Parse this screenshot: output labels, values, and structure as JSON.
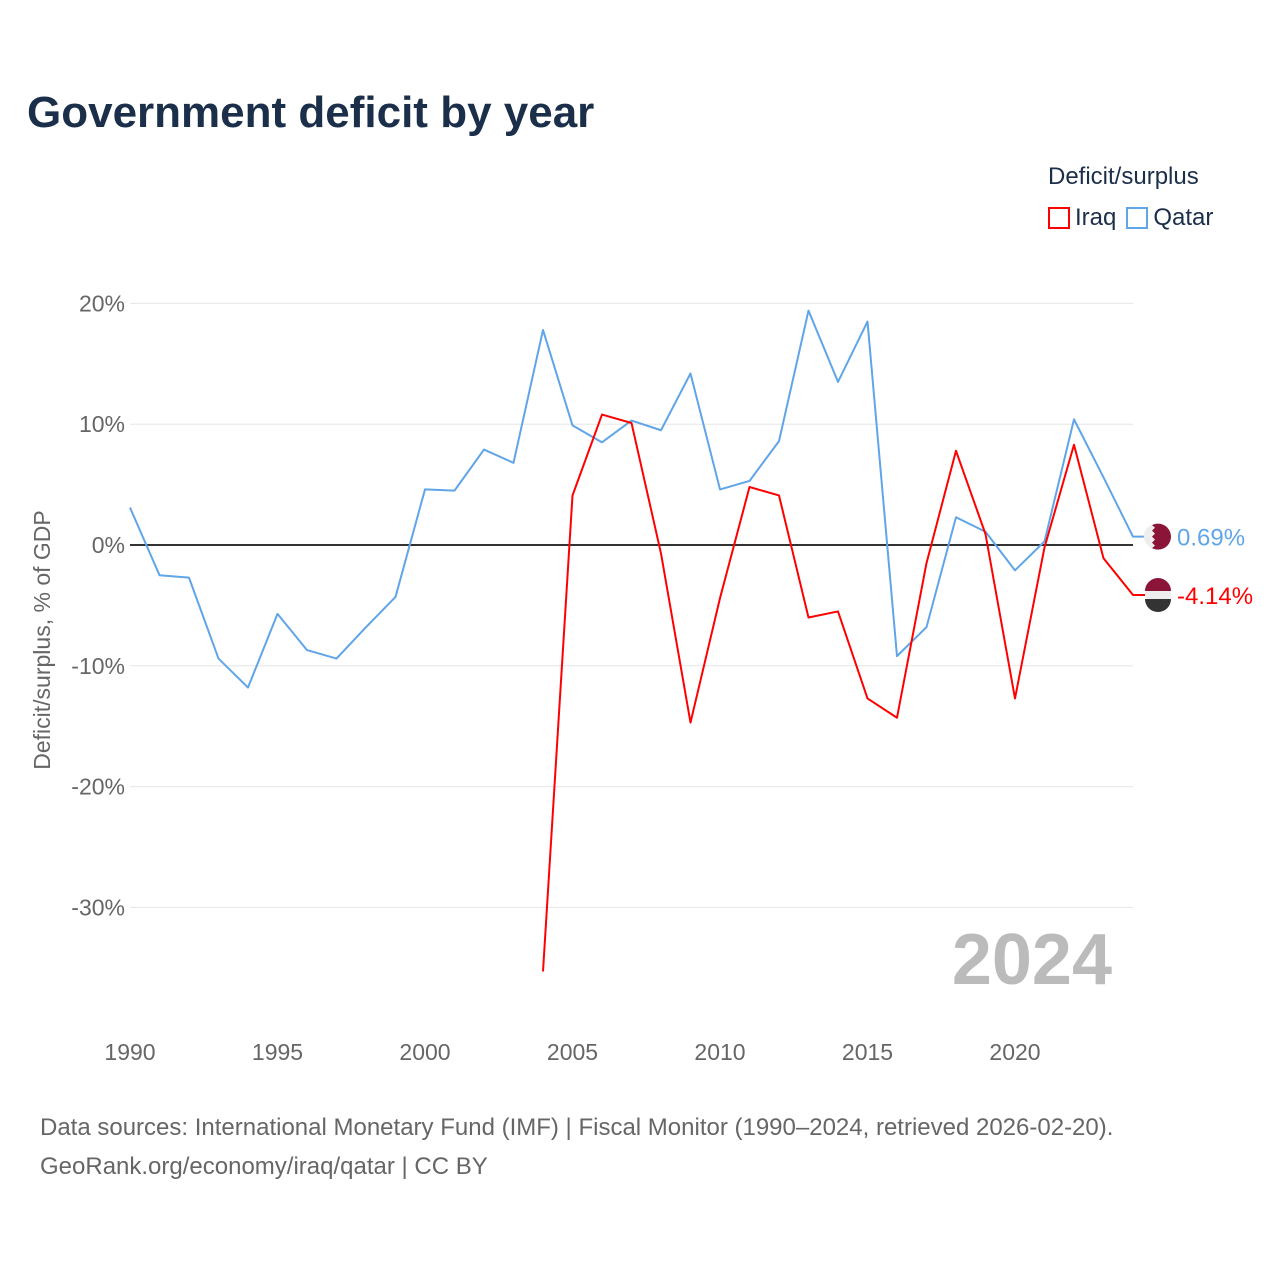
{
  "title": "Government deficit by year",
  "legend": {
    "title": "Deficit/surplus",
    "items": [
      {
        "name": "Iraq",
        "color": "#ff0000"
      },
      {
        "name": "Qatar",
        "color": "#60a5e8"
      }
    ]
  },
  "source_line1": "Data sources: International Monetary Fund (IMF) | Fiscal Monitor (1990–2024, retrieved 2026-02-20).",
  "source_line2": "GeoRank.org/economy/iraq/qatar | CC BY",
  "chart_data": {
    "type": "line",
    "title": "Government deficit by year",
    "xlabel": "",
    "ylabel": "Deficit/surplus, % of GDP",
    "xlim": [
      1990,
      2024
    ],
    "ylim": [
      -36,
      20
    ],
    "yticks": [
      20,
      10,
      0,
      -10,
      -20,
      -30
    ],
    "ytick_labels": [
      "20%",
      "10%",
      "0%",
      "-10%",
      "-20%",
      "-30%"
    ],
    "xticks": [
      1990,
      1995,
      2000,
      2005,
      2010,
      2015,
      2020
    ],
    "xtick_labels": [
      "1990",
      "1995",
      "2000",
      "2005",
      "2010",
      "2015",
      "2020"
    ],
    "year_watermark": "2024",
    "series": [
      {
        "name": "Qatar",
        "color": "#60a5e8",
        "end_label": "0.69%",
        "x": [
          1990,
          1991,
          1992,
          1993,
          1994,
          1995,
          1996,
          1997,
          1998,
          1999,
          2000,
          2001,
          2002,
          2003,
          2004,
          2005,
          2006,
          2007,
          2008,
          2009,
          2010,
          2011,
          2012,
          2013,
          2014,
          2015,
          2016,
          2017,
          2018,
          2019,
          2020,
          2021,
          2022,
          2023,
          2024
        ],
        "values": [
          3.1,
          -2.5,
          -2.7,
          -9.4,
          -11.8,
          -5.7,
          -8.7,
          -9.4,
          -6.8,
          -4.3,
          4.6,
          4.5,
          7.9,
          6.8,
          17.8,
          9.9,
          8.5,
          10.3,
          9.5,
          14.2,
          4.6,
          5.3,
          8.6,
          19.4,
          13.5,
          18.5,
          -9.2,
          -6.8,
          2.3,
          1.1,
          -2.1,
          0.3,
          10.4,
          5.6,
          0.69
        ]
      },
      {
        "name": "Iraq",
        "color": "#ff0000",
        "end_label": "-4.14%",
        "x": [
          2004,
          2005,
          2006,
          2007,
          2008,
          2009,
          2010,
          2011,
          2012,
          2013,
          2014,
          2015,
          2016,
          2017,
          2018,
          2019,
          2020,
          2021,
          2022,
          2023,
          2024
        ],
        "values": [
          -35.3,
          4.1,
          10.8,
          10.1,
          -0.7,
          -14.7,
          -4.4,
          4.8,
          4.1,
          -6.0,
          -5.5,
          -12.7,
          -14.3,
          -1.5,
          7.8,
          0.9,
          -12.7,
          -0.2,
          8.3,
          -1.1,
          -4.14
        ]
      }
    ]
  }
}
